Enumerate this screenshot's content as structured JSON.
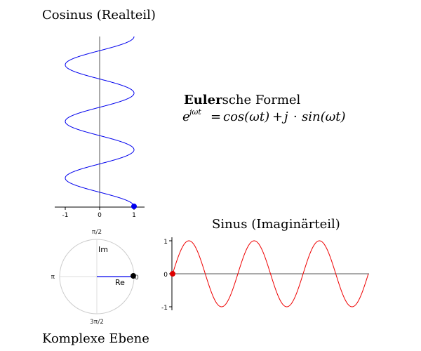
{
  "titles": {
    "cosine": "Cosinus (Realteil)",
    "sine": "Sinus (Imaginärteil)",
    "complex_plane": "Komplexe Ebene"
  },
  "formula": {
    "name_bold": "Euler",
    "name_rest": "sche Formel",
    "lhs_base": "e",
    "lhs_exp": "jωt",
    "equals": "=",
    "cos_part": "cos(ωt)",
    "plus": "+",
    "j": "j",
    "dot": "·",
    "sin_part": "sin(ωt)"
  },
  "cosine_axis": {
    "tick_labels": [
      "-1",
      "0",
      "1"
    ]
  },
  "sine_axis": {
    "tick_labels": [
      "1",
      "0",
      "-1"
    ]
  },
  "polar": {
    "label_top": "π/2",
    "label_left": "π",
    "label_right": "0",
    "label_bottom": "3π/2",
    "im_label": "Im",
    "re_label": "Re"
  },
  "chart_data": {
    "type": "line",
    "series": [
      {
        "curve": "cos",
        "x_range": [
          -1,
          1
        ],
        "t_range_rad": [
          0,
          18.85
        ],
        "color": "#0000ee"
      },
      {
        "curve": "sin",
        "y_range": [
          -1,
          1
        ],
        "t_range_rad": [
          0,
          18.85
        ],
        "color": "#ee0000"
      }
    ],
    "current_point": {
      "t_rad": 0,
      "cos": 1,
      "sin": 0
    },
    "colors": {
      "cos_marker": "#0000ee",
      "sin_marker": "#dd0000",
      "phasor": "#0000ee",
      "phasor_tip": "#000000"
    }
  }
}
